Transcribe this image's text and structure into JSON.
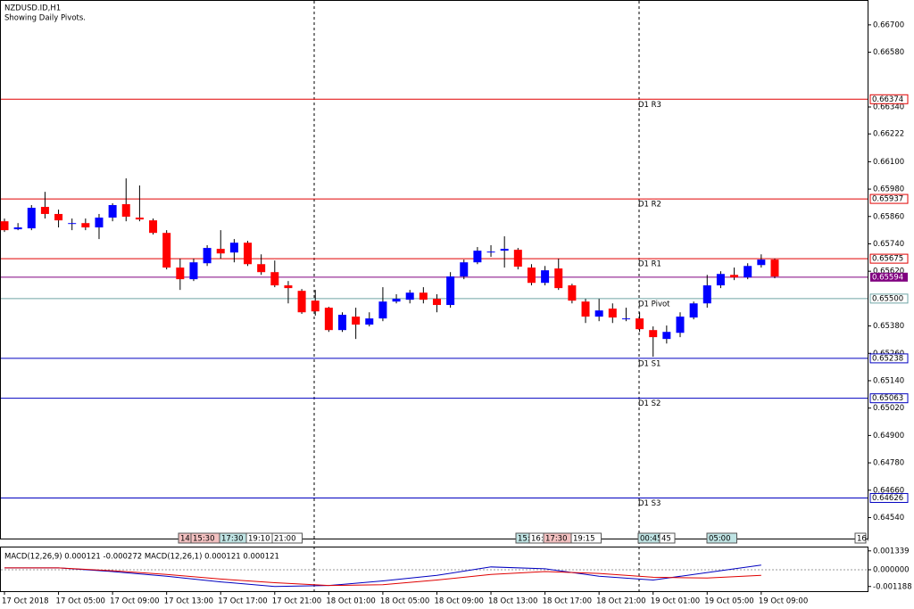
{
  "chart_data": {
    "type": "candlestick",
    "title": "NZDUSD.ID,H1",
    "subtitle": "Showing Daily Pivots.",
    "up_color": "#0000ff",
    "down_color": "#ff0000",
    "categories": [
      "17 Oct 2018",
      null,
      null,
      null,
      "17 Oct 05:00",
      null,
      null,
      null,
      "17 Oct 09:00",
      null,
      null,
      null,
      "17 Oct 13:00",
      null,
      null,
      null,
      "17 Oct 17:00",
      null,
      null,
      null,
      "17 Oct 21:00",
      null,
      null,
      null,
      "18 Oct 01:00",
      null,
      null,
      null,
      "18 Oct 05:00",
      null,
      null,
      null,
      "18 Oct 09:00",
      null,
      null,
      null,
      "18 Oct 13:00",
      null,
      null,
      null,
      "18 Oct 17:00",
      null,
      null,
      null,
      "18 Oct 21:00",
      null,
      null,
      null,
      "19 Oct 01:00",
      null,
      null,
      null,
      "19 Oct 05:00",
      null,
      null,
      null,
      "19 Oct 09:00",
      null
    ],
    "open": [
      0.65839,
      0.65804,
      0.65808,
      0.65902,
      0.65871,
      0.65831,
      0.65831,
      0.65812,
      0.65855,
      0.65914,
      0.65855,
      0.65843,
      0.65788,
      0.65636,
      0.65585,
      0.65655,
      0.65718,
      0.65702,
      0.65745,
      0.65651,
      0.65616,
      0.65558,
      0.65534,
      0.65491,
      0.6546,
      0.65362,
      0.65421,
      0.65386,
      0.65413,
      0.65487,
      0.65495,
      0.65526,
      0.65499,
      0.65472,
      0.65597,
      0.65659,
      0.65706,
      0.6571,
      0.65714,
      0.65636,
      0.65569,
      0.65632,
      0.65558,
      0.65487,
      0.65421,
      0.65456,
      0.65413,
      0.65413,
      0.65362,
      0.65323,
      0.6535,
      0.65417,
      0.65479,
      0.65558,
      0.65604,
      0.65593,
      0.65647,
      0.65671
    ],
    "high": [
      0.65851,
      0.65831,
      0.6591,
      0.65968,
      0.6589,
      0.65851,
      0.65851,
      0.65871,
      0.65918,
      0.66027,
      0.65996,
      0.65851,
      0.658,
      0.65675,
      0.65675,
      0.65734,
      0.658,
      0.65761,
      0.65753,
      0.65694,
      0.65667,
      0.65577,
      0.65542,
      0.65538,
      0.65464,
      0.6544,
      0.6546,
      0.6544,
      0.6555,
      0.65519,
      0.65538,
      0.6555,
      0.65519,
      0.65616,
      0.65671,
      0.65726,
      0.65734,
      0.65773,
      0.65722,
      0.65651,
      0.65643,
      0.65675,
      0.65565,
      0.65499,
      0.65499,
      0.65479,
      0.6546,
      0.6544,
      0.65378,
      0.65382,
      0.6544,
      0.65487,
      0.65604,
      0.6562,
      0.65636,
      0.65655,
      0.65694,
      0.65675
    ],
    "low": [
      0.65792,
      0.658,
      0.658,
      0.65851,
      0.65812,
      0.658,
      0.658,
      0.65761,
      0.65839,
      0.65839,
      0.65839,
      0.65781,
      0.65628,
      0.65538,
      0.65577,
      0.65643,
      0.65675,
      0.65659,
      0.65643,
      0.65604,
      0.6555,
      0.65479,
      0.65433,
      0.65425,
      0.65354,
      0.65354,
      0.65323,
      0.65378,
      0.65401,
      0.65479,
      0.65479,
      0.65479,
      0.6544,
      0.6546,
      0.65585,
      0.65651,
      0.65683,
      0.65636,
      0.65628,
      0.65558,
      0.65558,
      0.65538,
      0.65479,
      0.65393,
      0.65401,
      0.65393,
      0.65401,
      0.65354,
      0.65245,
      0.65303,
      0.65331,
      0.65409,
      0.6546,
      0.65546,
      0.65581,
      0.65585,
      0.65636,
      0.65589
    ],
    "close": [
      0.658,
      0.65812,
      0.65898,
      0.65871,
      0.65843,
      0.65831,
      0.65812,
      0.65855,
      0.6591,
      0.65859,
      0.65847,
      0.65788,
      0.65636,
      0.65585,
      0.65659,
      0.65722,
      0.65698,
      0.65745,
      0.65651,
      0.65616,
      0.65558,
      0.65546,
      0.6544,
      0.65444,
      0.65362,
      0.65429,
      0.65386,
      0.65413,
      0.65487,
      0.65499,
      0.65526,
      0.65495,
      0.65472,
      0.65597,
      0.65659,
      0.6571,
      0.65706,
      0.65718,
      0.6564,
      0.65569,
      0.65624,
      0.65546,
      0.65491,
      0.65421,
      0.65448,
      0.65417,
      0.65413,
      0.65366,
      0.65331,
      0.65354,
      0.65421,
      0.65479,
      0.65558,
      0.65608,
      0.65593,
      0.65643,
      0.65671,
      0.65597
    ],
    "ylim": [
      0.64448,
      0.66809
    ],
    "yticks": [
      {
        "value": 0.667,
        "label": "0.66700"
      },
      {
        "value": 0.6658,
        "label": "0.66580"
      },
      {
        "value": 0.6634,
        "label": "0.66340"
      },
      {
        "value": 0.66222,
        "label": "0.66222"
      },
      {
        "value": 0.661,
        "label": "0.66100"
      },
      {
        "value": 0.6598,
        "label": "0.65980"
      },
      {
        "value": 0.6586,
        "label": "0.65860"
      },
      {
        "value": 0.6574,
        "label": "0.65740"
      },
      {
        "value": 0.6562,
        "label": "0.65620"
      },
      {
        "value": 0.6538,
        "label": "0.65380"
      },
      {
        "value": 0.6526,
        "label": "0.65260"
      },
      {
        "value": 0.6514,
        "label": "0.65140"
      },
      {
        "value": 0.6502,
        "label": "0.65020"
      },
      {
        "value": 0.649,
        "label": "0.64900"
      },
      {
        "value": 0.6478,
        "label": "0.64780"
      },
      {
        "value": 0.6466,
        "label": "0.64660"
      },
      {
        "value": 0.6454,
        "label": "0.64540"
      }
    ],
    "levels": [
      {
        "name": "D1 R3",
        "value": 0.66374,
        "label": "0.66374",
        "color": "#e00000"
      },
      {
        "name": "D1 R2",
        "value": 0.65937,
        "label": "0.65937",
        "color": "#e00000"
      },
      {
        "name": "D1 R1",
        "value": 0.65675,
        "label": "0.65675",
        "color": "#e00000"
      },
      {
        "name": "D1 Pivot",
        "value": 0.655,
        "label": "0.65500",
        "color": "#6fa5a5"
      },
      {
        "name": "D1 S1",
        "value": 0.65238,
        "label": "0.65238",
        "color": "#0000c0"
      },
      {
        "name": "D1 S2",
        "value": 0.65063,
        "label": "0.65063",
        "color": "#0000c0"
      },
      {
        "name": "D1 S3",
        "value": 0.64626,
        "label": "0.64626",
        "color": "#0000c0"
      }
    ],
    "current_price": {
      "value": 0.65594,
      "label": "0.65594",
      "color": "#800080"
    },
    "events": [
      "14:",
      "15:30",
      "17:30",
      "19:10",
      "21:00",
      "15:",
      "16:",
      "17:30",
      "19:15",
      "00:45",
      "45",
      "05:00",
      "16:"
    ],
    "macd": {
      "label": "MACD(12,26,9) 0.000121 -0.000272 MACD(12,26,1) 0.000121 0.000121",
      "ylim": [
        -0.00152,
        0.00158
      ],
      "yticks": [
        {
          "value": 0.001339,
          "label": "0.001339"
        },
        {
          "value": 0,
          "label": "0.000000"
        },
        {
          "value": -0.001188,
          "label": "-0.001188"
        }
      ],
      "series": [
        {
          "color": "#0000c0",
          "values": [
            0.00013,
            0.00013,
            -0.00013,
            -0.00046,
            -0.00086,
            -0.00119,
            -0.00112,
            -0.00079,
            -0.0004,
            0.0002,
            7e-05,
            -0.00046,
            -0.00073,
            -0.0002,
            0.00033
          ]
        },
        {
          "color": "#e00000",
          "values": [
            0.00013,
            0.00013,
            -7e-05,
            -0.00033,
            -0.00066,
            -0.00092,
            -0.00112,
            -0.00106,
            -0.00073,
            -0.00033,
            -0.00013,
            -0.00026,
            -0.00053,
            -0.00059,
            -0.0004
          ]
        }
      ]
    }
  }
}
